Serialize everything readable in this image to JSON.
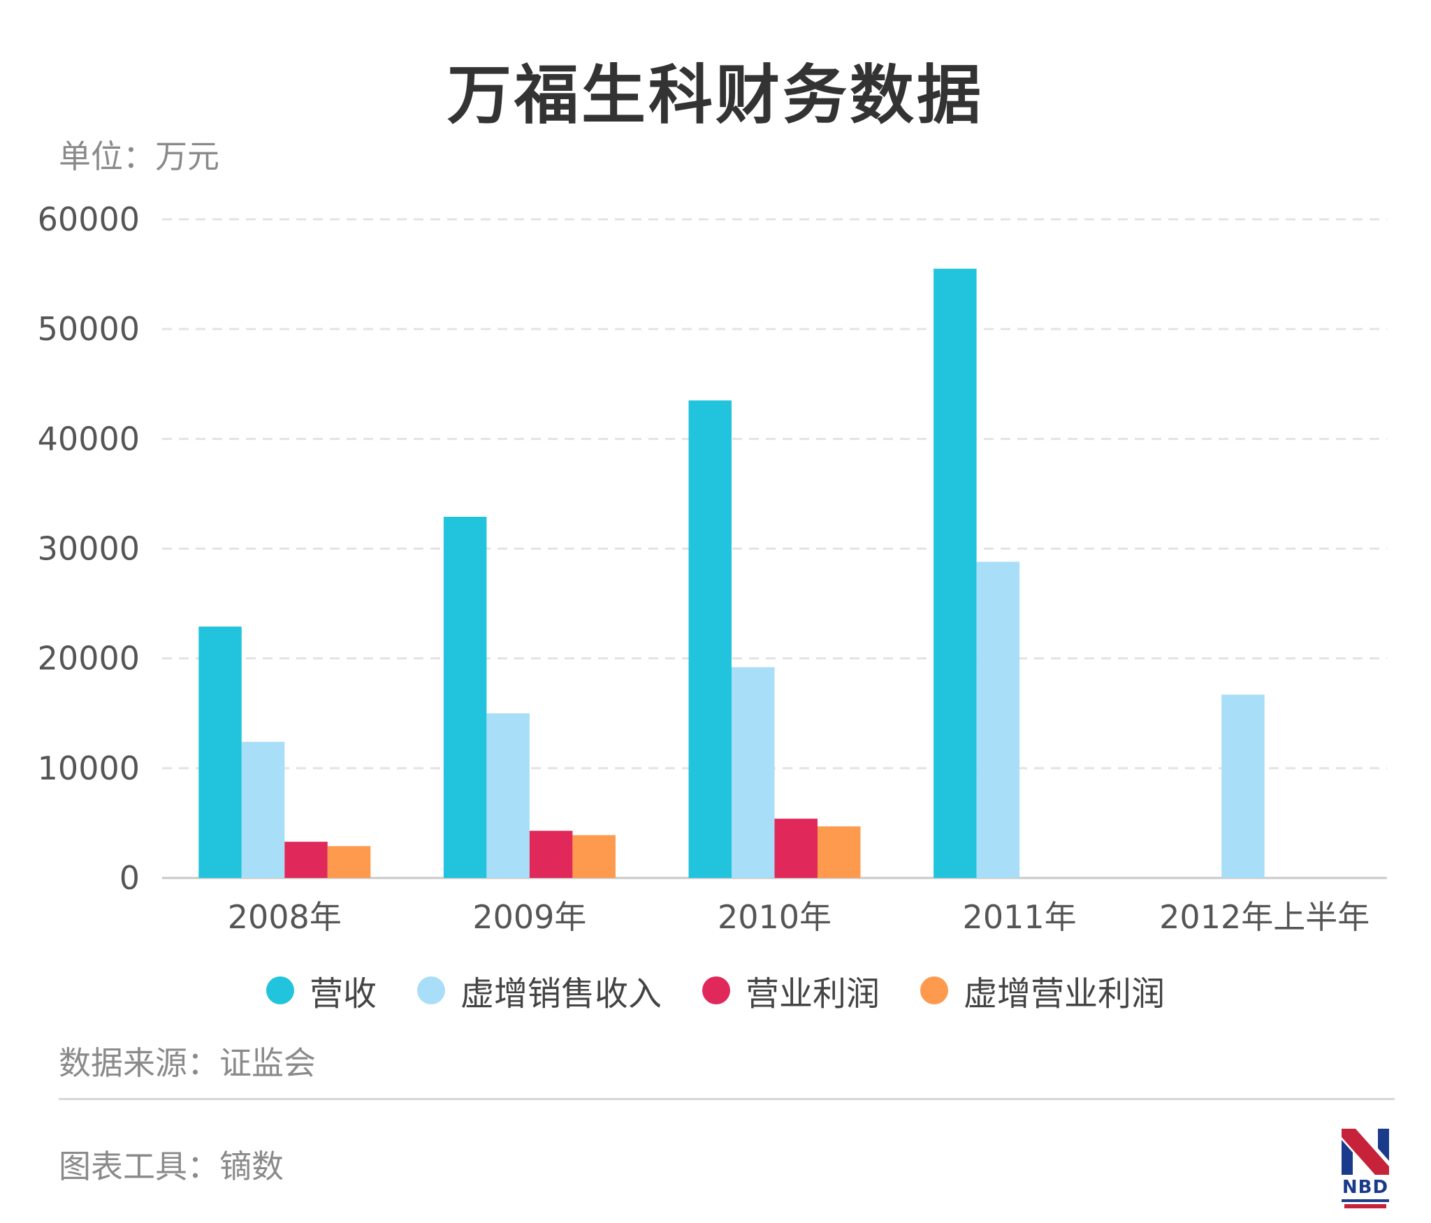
{
  "title": "万福生科财务数据",
  "unit_label": "单位：万元",
  "source_label": "数据来源：证监会",
  "tool_label": "图表工具：镝数",
  "logo": {
    "text": "NBD"
  },
  "chart_data": {
    "type": "bar",
    "title": "万福生科财务数据",
    "xlabel": "",
    "ylabel": "单位：万元",
    "ylim": [
      0,
      60000
    ],
    "yticks": [
      0,
      10000,
      20000,
      30000,
      40000,
      50000,
      60000
    ],
    "grid": true,
    "legend_position": "bottom",
    "categories": [
      "2008年",
      "2009年",
      "2010年",
      "2011年",
      "2012年上半年"
    ],
    "series": [
      {
        "name": "营收",
        "color": "#22c3dc",
        "values": [
          22900,
          32900,
          43500,
          55500,
          null
        ]
      },
      {
        "name": "虚增销售收入",
        "color": "#a8def8",
        "values": [
          12400,
          15000,
          19200,
          28800,
          16700
        ]
      },
      {
        "name": "营业利润",
        "color": "#e0295a",
        "values": [
          3300,
          4300,
          5400,
          null,
          null
        ]
      },
      {
        "name": "虚增营业利润",
        "color": "#fd9a4d",
        "values": [
          2900,
          3900,
          4700,
          null,
          null
        ]
      }
    ]
  }
}
